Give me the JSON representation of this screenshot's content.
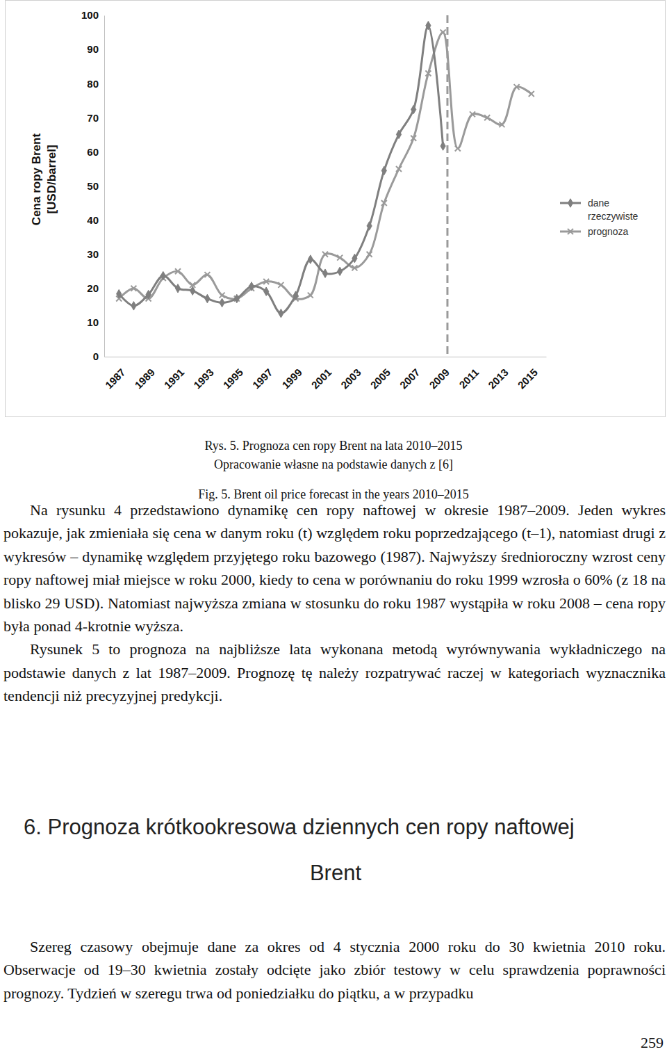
{
  "chart_data": {
    "type": "line",
    "y_label": [
      "Cena ropy Brent",
      "[USD/barrel]"
    ],
    "x": [
      1987,
      1988,
      1989,
      1990,
      1991,
      1992,
      1993,
      1994,
      1995,
      1996,
      1997,
      1998,
      1999,
      2000,
      2001,
      2002,
      2003,
      2004,
      2005,
      2006,
      2007,
      2008,
      2009,
      2010,
      2011,
      2012,
      2013,
      2014,
      2015
    ],
    "xlim": [
      1986,
      2016
    ],
    "xticks": [
      1987,
      1989,
      1991,
      1993,
      1995,
      1997,
      1999,
      2001,
      2003,
      2005,
      2007,
      2009,
      2011,
      2013,
      2015
    ],
    "ylim": [
      0,
      100
    ],
    "yticks": [
      0,
      10,
      20,
      30,
      40,
      50,
      60,
      70,
      80,
      90,
      100
    ],
    "grid": false,
    "legend": "right",
    "forecast_boundary": 2009.3,
    "series": [
      {
        "name": "dane rzeczywiste",
        "color": "#7f7f7f",
        "marker": "diamond",
        "line_style": "solid",
        "values": [
          18.4,
          14.9,
          18.2,
          23.7,
          20.0,
          19.3,
          17.0,
          15.8,
          17.0,
          20.6,
          19.1,
          12.7,
          17.9,
          28.5,
          24.4,
          25.0,
          28.8,
          38.3,
          54.5,
          65.1,
          72.4,
          97.0,
          61.7,
          null,
          null,
          null,
          null,
          null,
          null
        ]
      },
      {
        "name": "prognoza",
        "color": "#9a9a9a",
        "marker": "x",
        "line_style": "solid",
        "values": [
          17.0,
          20.0,
          17.0,
          23.0,
          25.0,
          21.0,
          24.0,
          18.0,
          17.0,
          20.0,
          22.0,
          21.0,
          17.0,
          18.0,
          30.0,
          29.0,
          26.0,
          30.0,
          45.0,
          55.0,
          64.0,
          83.0,
          95.0,
          61.0,
          71.0,
          70.0,
          68.0,
          79.0,
          77.0
        ]
      }
    ]
  },
  "document": {
    "captions": [
      "Rys. 5. Prognoza cen ropy Brent na lata 2010–2015",
      "Opracowanie własne na podstawie danych z [6]",
      "Fig. 5. Brent oil price forecast in the years 2010–2015"
    ],
    "paragraphs": [
      "Na rysunku 4 przedstawiono dynamikę cen ropy naftowej w okresie 1987–2009. Jeden wykres pokazuje, jak zmieniała się cena w danym roku (t) względem roku poprzedzającego (t–1), natomiast drugi z wykresów – dynamikę względem przyjętego roku bazowego (1987). Najwyższy średnioroczny wzrost ceny ropy naftowej miał miejsce w roku 2000, kiedy to cena w porównaniu do roku 1999 wzrosła o 60% (z 18 na blisko 29 USD). Natomiast najwyższa zmiana w stosunku do roku 1987 wystąpiła w roku 2008 – cena ropy była ponad 4-krotnie wyższa.",
      "Rysunek 5 to prognoza na najbliższe lata wykonana metodą wyrównywania wykładniczego na podstawie danych z lat 1987–2009. Prognozę tę należy rozpatrywać raczej w kategoriach wyznacznika tendencji niż precyzyjnej predykcji."
    ],
    "heading": [
      "6. Prognoza krótkookresowa dziennych cen ropy naftowej",
      "Brent"
    ],
    "section_paragraphs": [
      "Szereg czasowy obejmuje dane za okres od 4 stycznia 2000 roku do 30 kwietnia 2010 roku. Obserwacje od 19–30 kwietnia zostały odcięte jako zbiór testowy w celu sprawdzenia poprawności prognozy. Tydzień w szeregu trwa od poniedziałku do piątku, a w przypadku"
    ],
    "page_number": "259"
  }
}
